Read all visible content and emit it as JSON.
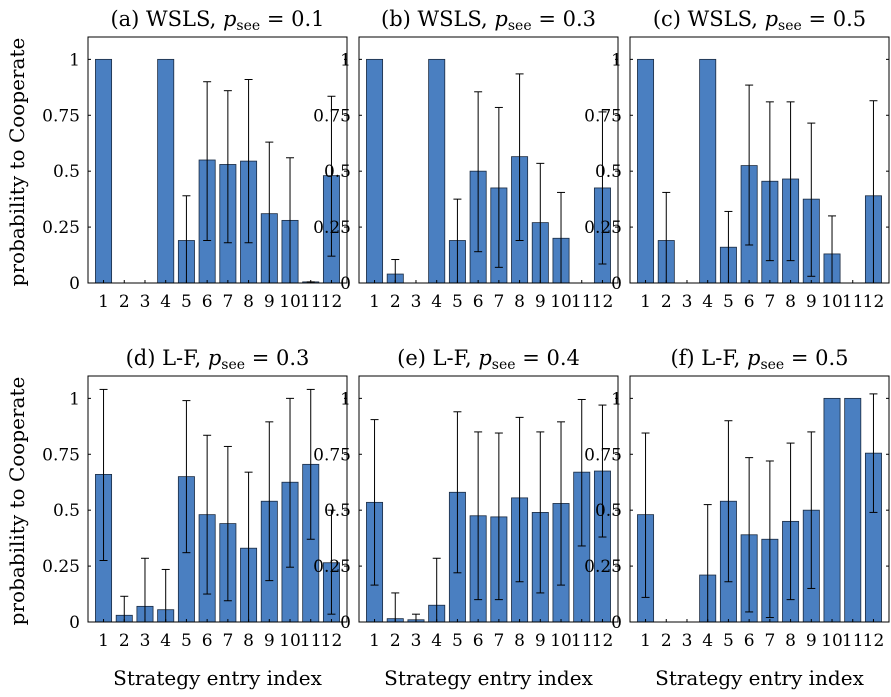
{
  "figure": {
    "ylabel": "probability to Cooperate",
    "xlabel": "Strategy entry index"
  },
  "chart_data": [
    {
      "type": "bar",
      "title_prefix": "(a) WSLS, ",
      "title_var": "p",
      "title_sub": "see",
      "title_suffix": " = 0.1",
      "categories": [
        "1",
        "2",
        "3",
        "4",
        "5",
        "6",
        "7",
        "8",
        "9",
        "10",
        "11",
        "12"
      ],
      "values": [
        1,
        0,
        0,
        1,
        0.19,
        0.55,
        0.53,
        0.545,
        0.31,
        0.28,
        0.005,
        0.48
      ],
      "err_low": [
        1,
        0,
        0,
        1,
        0,
        0.19,
        0.18,
        0.18,
        0,
        0,
        0,
        0.12
      ],
      "err_high": [
        1,
        0,
        0,
        1,
        0.39,
        0.9,
        0.86,
        0.91,
        0.63,
        0.56,
        0.005,
        0.835
      ],
      "ylim": [
        0,
        1.1
      ],
      "yticks": [
        "0",
        "0.25",
        "0.5",
        "0.75",
        "1"
      ],
      "ytick_values": [
        0,
        0.25,
        0.5,
        0.75,
        1
      ],
      "show_ylabel": true,
      "show_xlabel": false
    },
    {
      "type": "bar",
      "title_prefix": "(b) WSLS, ",
      "title_var": "p",
      "title_sub": "see",
      "title_suffix": " = 0.3",
      "categories": [
        "1",
        "2",
        "3",
        "4",
        "5",
        "6",
        "7",
        "8",
        "9",
        "10",
        "11",
        "12"
      ],
      "values": [
        1,
        0.04,
        0,
        1,
        0.19,
        0.5,
        0.425,
        0.565,
        0.27,
        0.2,
        0,
        0.425
      ],
      "err_low": [
        1,
        0,
        0,
        1,
        0,
        0.14,
        0.07,
        0.19,
        0,
        0,
        0,
        0.085
      ],
      "err_high": [
        1,
        0.105,
        0,
        1,
        0.375,
        0.855,
        0.785,
        0.935,
        0.535,
        0.405,
        0,
        0.765
      ],
      "ylim": [
        0,
        1.1
      ],
      "yticks": [
        "0",
        "0.25",
        "0.5",
        "0.75",
        "1"
      ],
      "ytick_values": [
        0,
        0.25,
        0.5,
        0.75,
        1
      ],
      "show_ylabel": false,
      "show_xlabel": false
    },
    {
      "type": "bar",
      "title_prefix": "(c) WSLS, ",
      "title_var": "p",
      "title_sub": "see",
      "title_suffix": " = 0.5",
      "categories": [
        "1",
        "2",
        "3",
        "4",
        "5",
        "6",
        "7",
        "8",
        "9",
        "10",
        "11",
        "12"
      ],
      "values": [
        1,
        0.19,
        0,
        1,
        0.16,
        0.525,
        0.455,
        0.465,
        0.375,
        0.13,
        0,
        0.39
      ],
      "err_low": [
        1,
        0,
        0,
        1,
        0,
        0.17,
        0.1,
        0.1,
        0.03,
        0,
        0,
        0
      ],
      "err_high": [
        1,
        0.405,
        0,
        1,
        0.32,
        0.885,
        0.81,
        0.81,
        0.715,
        0.3,
        0,
        0.815
      ],
      "ylim": [
        0,
        1.1
      ],
      "yticks": [
        "0",
        "0.25",
        "0.5",
        "0.75",
        "1"
      ],
      "ytick_values": [
        0,
        0.25,
        0.5,
        0.75,
        1
      ],
      "show_ylabel": false,
      "show_xlabel": false
    },
    {
      "type": "bar",
      "title_prefix": "(d) L-F, ",
      "title_var": "p",
      "title_sub": "see",
      "title_suffix": " = 0.3",
      "categories": [
        "1",
        "2",
        "3",
        "4",
        "5",
        "6",
        "7",
        "8",
        "9",
        "10",
        "11",
        "12"
      ],
      "values": [
        0.66,
        0.03,
        0.07,
        0.055,
        0.65,
        0.48,
        0.44,
        0.33,
        0.54,
        0.625,
        0.705,
        0.265
      ],
      "err_low": [
        0.275,
        0,
        0,
        0,
        0.31,
        0.125,
        0.095,
        0,
        0.185,
        0.245,
        0.37,
        0.035
      ],
      "err_high": [
        1.04,
        0.115,
        0.285,
        0.235,
        0.99,
        0.835,
        0.785,
        0.67,
        0.895,
        1.0,
        1.04,
        0.5
      ],
      "ylim": [
        0,
        1.1
      ],
      "yticks": [
        "0",
        "0.25",
        "0.5",
        "0.75",
        "1"
      ],
      "ytick_values": [
        0,
        0.25,
        0.5,
        0.75,
        1
      ],
      "show_ylabel": true,
      "show_xlabel": true
    },
    {
      "type": "bar",
      "title_prefix": "(e) L-F, ",
      "title_var": "p",
      "title_sub": "see",
      "title_suffix": " = 0.4",
      "categories": [
        "1",
        "2",
        "3",
        "4",
        "5",
        "6",
        "7",
        "8",
        "9",
        "10",
        "11",
        "12"
      ],
      "values": [
        0.535,
        0.015,
        0.01,
        0.075,
        0.58,
        0.475,
        0.47,
        0.555,
        0.49,
        0.53,
        0.67,
        0.675
      ],
      "err_low": [
        0.165,
        0,
        0,
        0,
        0.22,
        0.1,
        0.1,
        0.18,
        0.13,
        0.165,
        0.34,
        0.38
      ],
      "err_high": [
        0.905,
        0.13,
        0.035,
        0.285,
        0.94,
        0.85,
        0.845,
        0.915,
        0.85,
        0.895,
        0.995,
        0.97
      ],
      "ylim": [
        0,
        1.1
      ],
      "yticks": [
        "0",
        "0.25",
        "0.5",
        "0.75",
        "1"
      ],
      "ytick_values": [
        0,
        0.25,
        0.5,
        0.75,
        1
      ],
      "show_ylabel": false,
      "show_xlabel": true
    },
    {
      "type": "bar",
      "title_prefix": "(f) L-F, ",
      "title_var": "p",
      "title_sub": "see",
      "title_suffix": " = 0.5",
      "categories": [
        "1",
        "2",
        "3",
        "4",
        "5",
        "6",
        "7",
        "8",
        "9",
        "10",
        "11",
        "12"
      ],
      "values": [
        0.48,
        0,
        0,
        0.21,
        0.54,
        0.39,
        0.37,
        0.45,
        0.5,
        1,
        1,
        0.755
      ],
      "err_low": [
        0.11,
        0,
        0,
        0,
        0.18,
        0.045,
        0.02,
        0.1,
        0.15,
        1,
        1,
        0.49
      ],
      "err_high": [
        0.845,
        0,
        0,
        0.525,
        0.9,
        0.735,
        0.72,
        0.8,
        0.85,
        1,
        1,
        1.02
      ],
      "ylim": [
        0,
        1.1
      ],
      "yticks": [
        "0",
        "0.25",
        "0.5",
        "0.75",
        "1"
      ],
      "ytick_values": [
        0,
        0.25,
        0.5,
        0.75,
        1
      ],
      "show_ylabel": false,
      "show_xlabel": true
    }
  ]
}
